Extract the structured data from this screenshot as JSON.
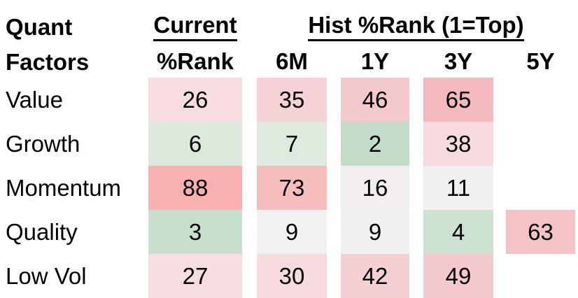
{
  "header": {
    "row_title_line1": "Quant",
    "row_title_line2": "Factors",
    "group_current": "Current",
    "group_hist": "Hist %Rank (1=Top)",
    "sub_current": "%Rank",
    "sub_6m": "6M",
    "sub_1y": "1Y",
    "sub_3y": "3Y",
    "sub_5y": "5Y"
  },
  "chart_data": {
    "type": "heatmap",
    "title": "Quant Factors percentile ranks",
    "legend_note": "1=Top",
    "column_groups": [
      {
        "label": "Current",
        "columns": [
          "%Rank"
        ]
      },
      {
        "label": "Hist %Rank (1=Top)",
        "columns": [
          "6M",
          "1Y",
          "3Y",
          "5Y"
        ]
      }
    ],
    "columns": [
      "Current %Rank",
      "6M",
      "1Y",
      "3Y",
      "5Y"
    ],
    "rows": [
      {
        "label": "Value",
        "values": [
          26,
          35,
          46,
          65,
          null
        ],
        "cells": [
          {
            "value": "26",
            "color": "#f7dde0"
          },
          {
            "value": "35",
            "color": "#f5d2d5"
          },
          {
            "value": "46",
            "color": "#f4c9cd"
          },
          {
            "value": "65",
            "color": "#f4b9bd"
          },
          {
            "value": "",
            "color": ""
          }
        ]
      },
      {
        "label": "Growth",
        "values": [
          6,
          7,
          2,
          38,
          null
        ],
        "cells": [
          {
            "value": "6",
            "color": "#dbe9dd"
          },
          {
            "value": "7",
            "color": "#ddeade"
          },
          {
            "value": "2",
            "color": "#c3dcc7"
          },
          {
            "value": "38",
            "color": "#f6dbde"
          },
          {
            "value": "",
            "color": ""
          }
        ]
      },
      {
        "label": "Momentum",
        "values": [
          88,
          73,
          16,
          11,
          null
        ],
        "cells": [
          {
            "value": "88",
            "color": "#f8b0b1"
          },
          {
            "value": "73",
            "color": "#f6bdbf"
          },
          {
            "value": "16",
            "color": "#f2eeee"
          },
          {
            "value": "11",
            "color": "#f1f0f1"
          },
          {
            "value": "",
            "color": ""
          }
        ]
      },
      {
        "label": "Quality",
        "values": [
          3,
          9,
          9,
          4,
          63
        ],
        "cells": [
          {
            "value": "3",
            "color": "#c9dfcd"
          },
          {
            "value": "9",
            "color": "#f1f1f1"
          },
          {
            "value": "9",
            "color": "#f1f0f1"
          },
          {
            "value": "4",
            "color": "#cde1d1"
          },
          {
            "value": "63",
            "color": "#f5c2c5"
          }
        ]
      },
      {
        "label": "Low Vol",
        "values": [
          27,
          30,
          42,
          49,
          null
        ],
        "cells": [
          {
            "value": "27",
            "color": "#f6dee0"
          },
          {
            "value": "30",
            "color": "#f6dbde"
          },
          {
            "value": "42",
            "color": "#f4cfd3"
          },
          {
            "value": "49",
            "color": "#f4c9cd"
          },
          {
            "value": "",
            "color": ""
          }
        ]
      }
    ],
    "color_scale": {
      "top_rank_green": "#c3dcc7",
      "neutral": "#f1f1f1",
      "bottom_rank_red": "#f8b0b1"
    }
  }
}
